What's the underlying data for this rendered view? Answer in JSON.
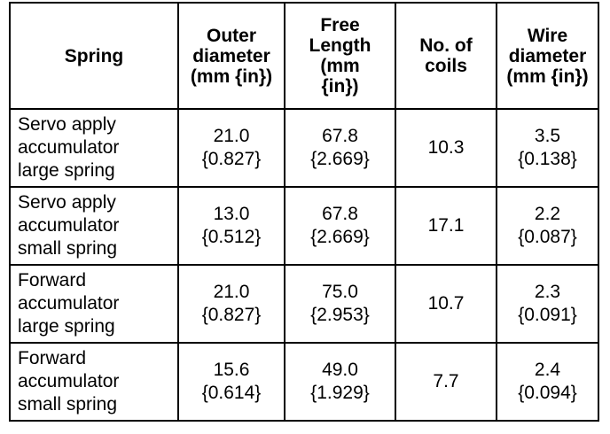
{
  "table": {
    "headers": [
      "Spring",
      "Outer\ndiameter\n(mm {in})",
      "Free\nLength\n(mm\n{in})",
      "No. of\ncoils",
      "Wire\ndiameter\n(mm {in})"
    ],
    "rows": [
      {
        "spring": "Servo apply\naccumulator\nlarge spring",
        "outer_diameter": "21.0\n{0.827}",
        "free_length": "67.8\n{2.669}",
        "coils": "10.3",
        "wire_diameter": "3.5\n{0.138}"
      },
      {
        "spring": "Servo apply\naccumulator\nsmall spring",
        "outer_diameter": "13.0\n{0.512}",
        "free_length": "67.8\n{2.669}",
        "coils": "17.1",
        "wire_diameter": "2.2\n{0.087}"
      },
      {
        "spring": "Forward\naccumulator\nlarge spring",
        "outer_diameter": "21.0\n{0.827}",
        "free_length": "75.0\n{2.953}",
        "coils": "10.7",
        "wire_diameter": "2.3\n{0.091}"
      },
      {
        "spring": "Forward\naccumulator\nsmall spring",
        "outer_diameter": "15.6\n{0.614}",
        "free_length": "49.0\n{1.929}",
        "coils": "7.7",
        "wire_diameter": "2.4\n{0.094}"
      }
    ]
  }
}
